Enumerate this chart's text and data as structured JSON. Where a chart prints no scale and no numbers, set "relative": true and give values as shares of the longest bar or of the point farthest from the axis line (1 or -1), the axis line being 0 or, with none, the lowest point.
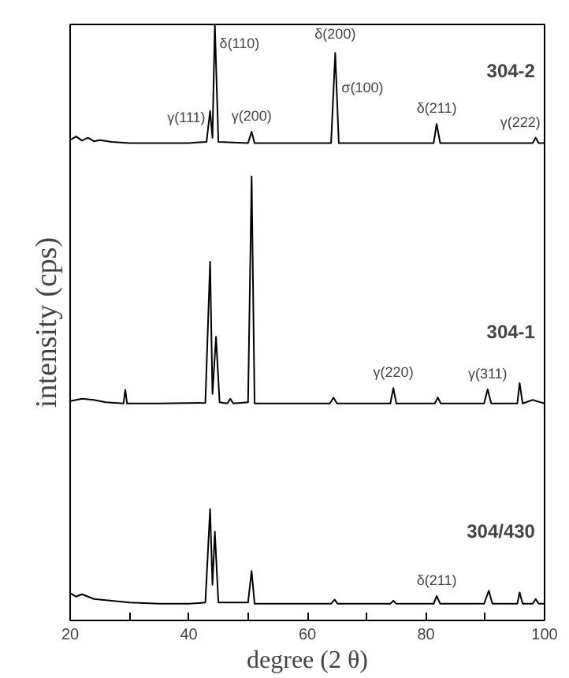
{
  "chart_data": {
    "type": "line",
    "relative": true,
    "xlabel": "degree (2 θ)",
    "ylabel": "intensity (cps)",
    "xlim": [
      20,
      100
    ],
    "xticks": [
      20,
      {
        "value": 30,
        "label": null
      },
      40,
      {
        "value": 50,
        "label": null
      },
      60,
      {
        "value": 70,
        "label": null
      },
      80,
      {
        "value": 90,
        "label": null
      },
      100
    ],
    "series": [
      {
        "name": "304-2",
        "color": "#000000",
        "x": [
          20,
          21,
          22,
          23,
          24,
          25,
          27,
          30,
          35,
          40,
          43.0,
          43.6,
          44.0,
          44.4,
          45.0,
          50.0,
          50.6,
          51.1,
          64.0,
          64.7,
          65.3,
          81.3,
          81.8,
          82.4,
          98.0,
          98.5,
          99.0,
          100
        ],
        "values": [
          0.806,
          0.812,
          0.805,
          0.81,
          0.804,
          0.806,
          0.803,
          0.801,
          0.801,
          0.801,
          0.803,
          0.855,
          0.81,
          1.0,
          0.803,
          0.801,
          0.82,
          0.801,
          0.801,
          0.952,
          0.801,
          0.801,
          0.833,
          0.801,
          0.801,
          0.81,
          0.801,
          0.801
        ]
      },
      {
        "name": "304-1",
        "color": "#000000",
        "x": [
          20,
          22,
          24,
          26,
          29.0,
          29.3,
          29.6,
          35,
          42.8,
          43.6,
          44.0,
          44.6,
          45.2,
          46.5,
          47,
          47.5,
          50.0,
          50.6,
          51.1,
          63.8,
          64.4,
          65.0,
          74.0,
          74.5,
          75.0,
          81.5,
          82.0,
          82.5,
          89.8,
          90.4,
          91.0,
          95.4,
          95.8,
          96.3,
          98,
          100
        ],
        "values": [
          0.368,
          0.372,
          0.37,
          0.366,
          0.364,
          0.387,
          0.364,
          0.364,
          0.365,
          0.602,
          0.38,
          0.476,
          0.366,
          0.364,
          0.372,
          0.364,
          0.366,
          0.745,
          0.364,
          0.364,
          0.374,
          0.364,
          0.364,
          0.39,
          0.364,
          0.364,
          0.374,
          0.364,
          0.364,
          0.388,
          0.364,
          0.364,
          0.398,
          0.364,
          0.37,
          0.364
        ]
      },
      {
        "name": "304/430",
        "color": "#000000",
        "x": [
          20,
          21,
          22,
          24,
          26,
          28,
          30,
          35,
          40,
          42.8,
          43.6,
          44.0,
          44.4,
          45.0,
          50.0,
          50.6,
          51.1,
          64.0,
          64.6,
          65.1,
          74.0,
          74.5,
          75.0,
          81.3,
          81.8,
          82.4,
          89.8,
          90.6,
          91.2,
          95.4,
          95.8,
          96.3,
          98.0,
          98.5,
          99.0,
          100
        ],
        "values": [
          0.046,
          0.04,
          0.044,
          0.036,
          0.034,
          0.032,
          0.03,
          0.028,
          0.028,
          0.03,
          0.187,
          0.06,
          0.149,
          0.03,
          0.03,
          0.083,
          0.028,
          0.028,
          0.035,
          0.028,
          0.028,
          0.033,
          0.028,
          0.028,
          0.041,
          0.028,
          0.028,
          0.05,
          0.028,
          0.028,
          0.047,
          0.028,
          0.028,
          0.036,
          0.028,
          0.028
        ]
      }
    ],
    "annotations": [
      {
        "text": "γ(111)",
        "x": 43.6,
        "y": 0.855
      },
      {
        "text": "δ(110)",
        "x": 44.4,
        "y": 1.0
      },
      {
        "text": "γ(200)",
        "x": 50.6,
        "y": 0.82
      },
      {
        "text": "δ(200)",
        "x": 64.7,
        "y": 0.952
      },
      {
        "text": "σ(100)",
        "x": 64.7,
        "y": 0.952
      },
      {
        "text": "δ(211)",
        "x": 81.8,
        "y": 0.833
      },
      {
        "text": "γ(222)",
        "x": 98.5,
        "y": 0.81
      },
      {
        "text": "γ(220)",
        "x": 74.5,
        "y": 0.39
      },
      {
        "text": "γ(311)",
        "x": 90.4,
        "y": 0.388
      },
      {
        "text": "δ(211)",
        "x": 81.8,
        "y": 0.041
      }
    ]
  }
}
